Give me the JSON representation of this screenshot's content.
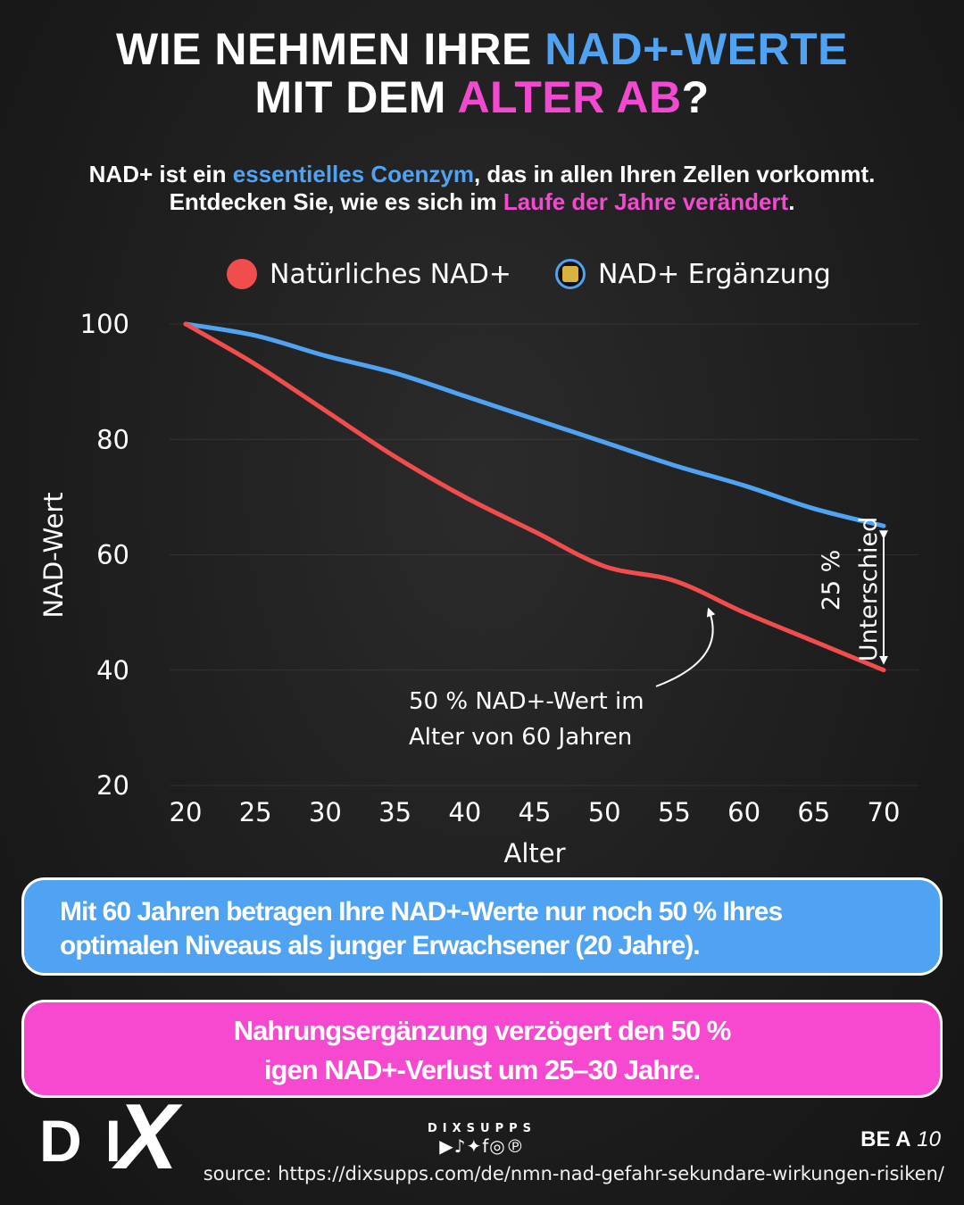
{
  "header": {
    "title_line1_white": "WIE NEHMEN IHRE ",
    "title_line1_blue": "NAD+-WERTE",
    "title_line2_white": "MIT DEM ",
    "title_line2_pink": "ALTER AB",
    "title_line2_end": "?",
    "subtitle_line1_a": "NAD+ ist ein ",
    "subtitle_line1_blue": "essentielles Coenzym",
    "subtitle_line1_b": ", das in allen Ihren Zellen vorkommt.",
    "subtitle_line2_a": "Entdecken Sie, wie es sich im ",
    "subtitle_line2_pink": "Laufe der Jahre verändert",
    "subtitle_line2_b": "."
  },
  "colors": {
    "natural": "#f24d4d",
    "supplement": "#4fa3f2",
    "accent_blue": "#4fa3f2",
    "accent_pink": "#f14ad0"
  },
  "chart_data": {
    "type": "line",
    "xlabel": "Alter",
    "ylabel": "NAD-Wert",
    "x": [
      20,
      25,
      30,
      35,
      40,
      45,
      50,
      55,
      60,
      65,
      70
    ],
    "xlim": [
      20,
      70
    ],
    "ylim": [
      20,
      100
    ],
    "yticks": [
      100,
      80,
      60,
      40,
      20
    ],
    "grid": "horizontal",
    "legend_position": "top",
    "series": [
      {
        "name": "Natürliches NAD+",
        "color": "#f24d4d",
        "values": [
          100,
          93,
          85,
          77,
          70,
          64,
          58,
          55.5,
          50,
          45,
          40
        ]
      },
      {
        "name": "NAD+ Ergänzung",
        "color": "#4fa3f2",
        "values": [
          100,
          98,
          94.5,
          91.5,
          87.5,
          83.5,
          79.5,
          75.5,
          72,
          68,
          65
        ]
      }
    ],
    "annotations": {
      "gap_label_1": "25 %",
      "gap_label_2": "Unterschied",
      "note_line1": "50 % NAD+-Wert im",
      "note_line2": "Alter von 60 Jahren"
    }
  },
  "info_boxes": {
    "blue_line1": "Mit 60 Jahren betragen Ihre NAD+-Werte nur noch 50 % Ihres",
    "blue_line2": "optimalen Niveaus als junger Erwachsener (20 Jahre).",
    "pink_line1": "Nahrungsergänzung verzögert den 50 %",
    "pink_line2": "igen NAD+-Verlust um 25–30 Jahre."
  },
  "footer": {
    "logo_text": "DI",
    "logo_x": "X",
    "handle": "DIXSUPPS",
    "social_icons": [
      "youtube-icon",
      "tiktok-icon",
      "twitter-icon",
      "facebook-icon",
      "instagram-icon",
      "pinterest-icon"
    ],
    "social_glyphs": "▶♪✦f◎℗",
    "bea_bold": "BE A",
    "bea_num": "10",
    "source": "source: https://dixsupps.com/de/nmn-nad-gefahr-sekundare-wirkungen-risiken/"
  }
}
